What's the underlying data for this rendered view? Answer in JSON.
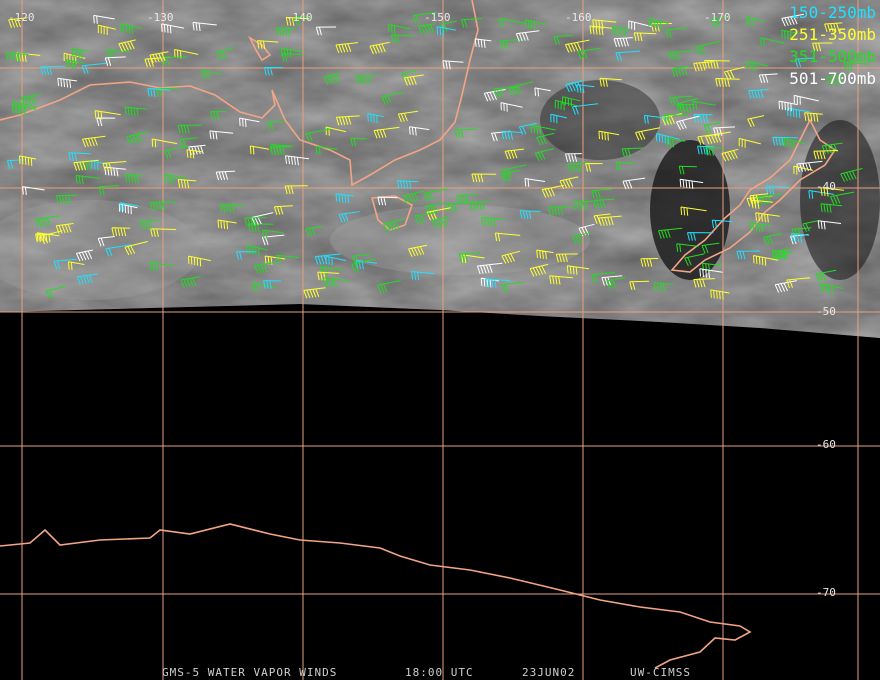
{
  "map": {
    "lon_labels": [
      "-120",
      "-130",
      "-140",
      "-150",
      "-160",
      "-170"
    ],
    "lat_labels": [
      "-40",
      "-50",
      "-60",
      "-70"
    ],
    "legend": [
      {
        "label": "150-250mb",
        "color": "#22e0ff"
      },
      {
        "label": "251-350mb",
        "color": "#ffff30"
      },
      {
        "label": "351-500mb",
        "color": "#22dd22"
      },
      {
        "label": "501-700mb",
        "color": "#ffffff"
      }
    ],
    "footer": [
      "GMS-5 WATER VAPOR WINDS",
      "18:00 UTC",
      "23JUN02",
      "UW-CIMSS"
    ]
  }
}
